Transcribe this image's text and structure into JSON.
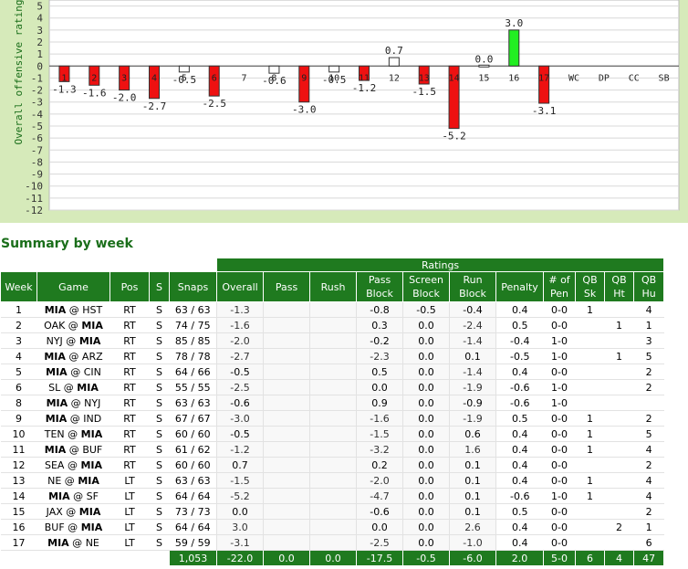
{
  "chart_data": {
    "type": "bar",
    "ylabel": "Overall offensive rating",
    "ylim": [
      -12,
      5
    ],
    "yticks": [
      5,
      4,
      3,
      2,
      1,
      0,
      -1,
      -2,
      -3,
      -4,
      -5,
      -6,
      -7,
      -8,
      -9,
      -10,
      -11,
      -12
    ],
    "grid": true,
    "categories": [
      "1",
      "2",
      "3",
      "4",
      "5",
      "6",
      "7",
      "8",
      "9",
      "10",
      "11",
      "12",
      "13",
      "14",
      "15",
      "16",
      "17",
      "WC",
      "DP",
      "CC",
      "SB"
    ],
    "values": [
      -1.3,
      -1.6,
      -2.0,
      -2.7,
      -0.5,
      -2.5,
      null,
      -0.6,
      -3.0,
      -0.5,
      -1.2,
      0.7,
      -1.5,
      -5.2,
      0.0,
      3.0,
      -3.1,
      null,
      null,
      null,
      null
    ],
    "value_labels": [
      "-1.3",
      "-1.6",
      "-2.0",
      "-2.7",
      "-0.5",
      "-2.5",
      "",
      "-0.6",
      "-3.0",
      "-0.5",
      "-1.2",
      "0.7",
      "-1.5",
      "-5.2",
      "0.0",
      "3.0",
      "-3.1",
      "",
      "",
      "",
      ""
    ]
  },
  "colors": {
    "negative": "#ee1111",
    "positive": "#22ee22",
    "neutral": "#ffffff",
    "header": "#1f7a1f",
    "title": "#1a6e1a",
    "panel": "#d6eaba"
  },
  "summary": {
    "title": "Summary by week",
    "group_header": "Ratings",
    "headers": {
      "week": "Week",
      "game": "Game",
      "pos": "Pos",
      "s": "S",
      "snaps": "Snaps",
      "overall": "Overall",
      "pass": "Pass",
      "rush": "Rush",
      "pass_block": [
        "Pass",
        "Block"
      ],
      "screen_block": [
        "Screen",
        "Block"
      ],
      "run_block": [
        "Run",
        "Block"
      ],
      "penalty": "Penalty",
      "num_pen": [
        "# of",
        "Pen"
      ],
      "qb_sk": [
        "QB",
        "Sk"
      ],
      "qb_ht": [
        "QB",
        "Ht"
      ],
      "qb_hu": [
        "QB",
        "Hu"
      ]
    },
    "rows": [
      {
        "week": "1",
        "away": "MIA",
        "home": "HST",
        "bold": "away",
        "pos": "RT",
        "s": "S",
        "snaps": "63 / 63",
        "overall": "-1.3",
        "pass": "",
        "rush": "",
        "pass_block": "-0.8",
        "screen_block": "-0.5",
        "run_block": "-0.4",
        "penalty": "0.4",
        "num_pen": "0-0",
        "qb_sk": "1",
        "qb_ht": "",
        "qb_hu": "4"
      },
      {
        "week": "2",
        "away": "OAK",
        "home": "MIA",
        "bold": "home",
        "pos": "RT",
        "s": "S",
        "snaps": "74 / 75",
        "overall": "-1.6",
        "pass": "",
        "rush": "",
        "pass_block": "0.3",
        "screen_block": "0.0",
        "run_block": "-2.4",
        "penalty": "0.5",
        "num_pen": "0-0",
        "qb_sk": "",
        "qb_ht": "1",
        "qb_hu": "1"
      },
      {
        "week": "3",
        "away": "NYJ",
        "home": "MIA",
        "bold": "home",
        "pos": "RT",
        "s": "S",
        "snaps": "85 / 85",
        "overall": "-2.0",
        "pass": "",
        "rush": "",
        "pass_block": "-0.2",
        "screen_block": "0.0",
        "run_block": "-1.4",
        "penalty": "-0.4",
        "num_pen": "1-0",
        "qb_sk": "",
        "qb_ht": "",
        "qb_hu": "3"
      },
      {
        "week": "4",
        "away": "MIA",
        "home": "ARZ",
        "bold": "away",
        "pos": "RT",
        "s": "S",
        "snaps": "78 / 78",
        "overall": "-2.7",
        "pass": "",
        "rush": "",
        "pass_block": "-2.3",
        "screen_block": "0.0",
        "run_block": "0.1",
        "penalty": "-0.5",
        "num_pen": "1-0",
        "qb_sk": "",
        "qb_ht": "1",
        "qb_hu": "5"
      },
      {
        "week": "5",
        "away": "MIA",
        "home": "CIN",
        "bold": "away",
        "pos": "RT",
        "s": "S",
        "snaps": "64 / 66",
        "overall": "-0.5",
        "pass": "",
        "rush": "",
        "pass_block": "0.5",
        "screen_block": "0.0",
        "run_block": "-1.4",
        "penalty": "0.4",
        "num_pen": "0-0",
        "qb_sk": "",
        "qb_ht": "",
        "qb_hu": "2"
      },
      {
        "week": "6",
        "away": "SL",
        "home": "MIA",
        "bold": "home",
        "pos": "RT",
        "s": "S",
        "snaps": "55 / 55",
        "overall": "-2.5",
        "pass": "",
        "rush": "",
        "pass_block": "0.0",
        "screen_block": "0.0",
        "run_block": "-1.9",
        "penalty": "-0.6",
        "num_pen": "1-0",
        "qb_sk": "",
        "qb_ht": "",
        "qb_hu": "2"
      },
      {
        "week": "8",
        "away": "MIA",
        "home": "NYJ",
        "bold": "away",
        "pos": "RT",
        "s": "S",
        "snaps": "63 / 63",
        "overall": "-0.6",
        "pass": "",
        "rush": "",
        "pass_block": "0.9",
        "screen_block": "0.0",
        "run_block": "-0.9",
        "penalty": "-0.6",
        "num_pen": "1-0",
        "qb_sk": "",
        "qb_ht": "",
        "qb_hu": ""
      },
      {
        "week": "9",
        "away": "MIA",
        "home": "IND",
        "bold": "away",
        "pos": "RT",
        "s": "S",
        "snaps": "67 / 67",
        "overall": "-3.0",
        "pass": "",
        "rush": "",
        "pass_block": "-1.6",
        "screen_block": "0.0",
        "run_block": "-1.9",
        "penalty": "0.5",
        "num_pen": "0-0",
        "qb_sk": "1",
        "qb_ht": "",
        "qb_hu": "2"
      },
      {
        "week": "10",
        "away": "TEN",
        "home": "MIA",
        "bold": "home",
        "pos": "RT",
        "s": "S",
        "snaps": "60 / 60",
        "overall": "-0.5",
        "pass": "",
        "rush": "",
        "pass_block": "-1.5",
        "screen_block": "0.0",
        "run_block": "0.6",
        "penalty": "0.4",
        "num_pen": "0-0",
        "qb_sk": "1",
        "qb_ht": "",
        "qb_hu": "5"
      },
      {
        "week": "11",
        "away": "MIA",
        "home": "BUF",
        "bold": "away",
        "pos": "RT",
        "s": "S",
        "snaps": "61 / 62",
        "overall": "-1.2",
        "pass": "",
        "rush": "",
        "pass_block": "-3.2",
        "screen_block": "0.0",
        "run_block": "1.6",
        "penalty": "0.4",
        "num_pen": "0-0",
        "qb_sk": "1",
        "qb_ht": "",
        "qb_hu": "4"
      },
      {
        "week": "12",
        "away": "SEA",
        "home": "MIA",
        "bold": "home",
        "pos": "RT",
        "s": "S",
        "snaps": "60 / 60",
        "overall": "0.7",
        "pass": "",
        "rush": "",
        "pass_block": "0.2",
        "screen_block": "0.0",
        "run_block": "0.1",
        "penalty": "0.4",
        "num_pen": "0-0",
        "qb_sk": "",
        "qb_ht": "",
        "qb_hu": "2"
      },
      {
        "week": "13",
        "away": "NE",
        "home": "MIA",
        "bold": "home",
        "pos": "LT",
        "s": "S",
        "snaps": "63 / 63",
        "overall": "-1.5",
        "pass": "",
        "rush": "",
        "pass_block": "-2.0",
        "screen_block": "0.0",
        "run_block": "0.1",
        "penalty": "0.4",
        "num_pen": "0-0",
        "qb_sk": "1",
        "qb_ht": "",
        "qb_hu": "4"
      },
      {
        "week": "14",
        "away": "MIA",
        "home": "SF",
        "bold": "away",
        "pos": "LT",
        "s": "S",
        "snaps": "64 / 64",
        "overall": "-5.2",
        "pass": "",
        "rush": "",
        "pass_block": "-4.7",
        "screen_block": "0.0",
        "run_block": "0.1",
        "penalty": "-0.6",
        "num_pen": "1-0",
        "qb_sk": "1",
        "qb_ht": "",
        "qb_hu": "4"
      },
      {
        "week": "15",
        "away": "JAX",
        "home": "MIA",
        "bold": "home",
        "pos": "LT",
        "s": "S",
        "snaps": "73 / 73",
        "overall": "0.0",
        "pass": "",
        "rush": "",
        "pass_block": "-0.6",
        "screen_block": "0.0",
        "run_block": "0.1",
        "penalty": "0.5",
        "num_pen": "0-0",
        "qb_sk": "",
        "qb_ht": "",
        "qb_hu": "2"
      },
      {
        "week": "16",
        "away": "BUF",
        "home": "MIA",
        "bold": "home",
        "pos": "LT",
        "s": "S",
        "snaps": "64 / 64",
        "overall": "3.0",
        "pass": "",
        "rush": "",
        "pass_block": "0.0",
        "screen_block": "0.0",
        "run_block": "2.6",
        "penalty": "0.4",
        "num_pen": "0-0",
        "qb_sk": "",
        "qb_ht": "2",
        "qb_hu": "1"
      },
      {
        "week": "17",
        "away": "MIA",
        "home": "NE",
        "bold": "away",
        "pos": "LT",
        "s": "S",
        "snaps": "59 / 59",
        "overall": "-3.1",
        "pass": "",
        "rush": "",
        "pass_block": "-2.5",
        "screen_block": "0.0",
        "run_block": "-1.0",
        "penalty": "0.4",
        "num_pen": "0-0",
        "qb_sk": "",
        "qb_ht": "",
        "qb_hu": "6"
      }
    ],
    "totals": {
      "snaps": "1,053",
      "overall": "-22.0",
      "pass": "0.0",
      "rush": "0.0",
      "pass_block": "-17.5",
      "screen_block": "-0.5",
      "run_block": "-6.0",
      "penalty": "2.0",
      "num_pen": "5-0",
      "qb_sk": "6",
      "qb_ht": "4",
      "qb_hu": "47"
    }
  }
}
